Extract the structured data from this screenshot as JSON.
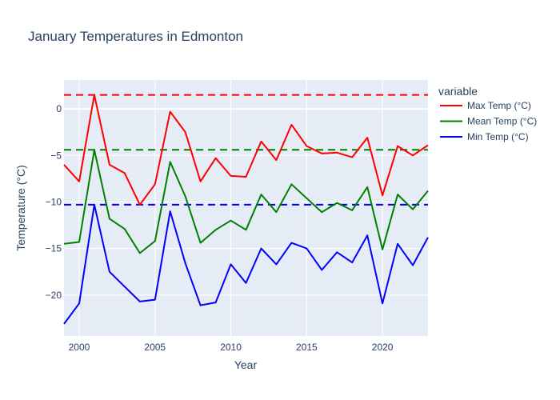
{
  "chart_data": {
    "type": "line",
    "title": "January Temperatures in Edmonton",
    "xlabel": "Year",
    "ylabel": "Temperature (°C)",
    "legend_title": "variable",
    "legend_position": "right",
    "grid": true,
    "xlim": [
      1999,
      2023
    ],
    "ylim": [
      -24.4,
      3.1
    ],
    "xticks": [
      2000,
      2005,
      2010,
      2015,
      2020
    ],
    "yticks": [
      0,
      -5,
      -10,
      -15,
      -20
    ],
    "x": [
      1999,
      2000,
      2001,
      2002,
      2003,
      2004,
      2005,
      2006,
      2007,
      2008,
      2009,
      2010,
      2011,
      2012,
      2013,
      2014,
      2015,
      2016,
      2017,
      2018,
      2019,
      2020,
      2021,
      2022,
      2023
    ],
    "series": [
      {
        "name": "Max Temp (°C)",
        "color": "#ff0000",
        "values": [
          -6.0,
          -7.8,
          1.5,
          -6.0,
          -6.9,
          -10.3,
          -8.1,
          -0.3,
          -2.5,
          -7.8,
          -5.3,
          -7.2,
          -7.3,
          -3.5,
          -5.5,
          -1.7,
          -4.0,
          -4.8,
          -4.7,
          -5.2,
          -3.1,
          -9.3,
          -4.0,
          -5.0,
          -3.9
        ]
      },
      {
        "name": "Mean Temp (°C)",
        "color": "#008000",
        "values": [
          -14.5,
          -14.3,
          -4.4,
          -11.8,
          -12.9,
          -15.5,
          -14.2,
          -5.7,
          -9.4,
          -14.4,
          -13.0,
          -12.0,
          -13.0,
          -9.2,
          -11.1,
          -8.1,
          -9.6,
          -11.1,
          -10.1,
          -10.9,
          -8.4,
          -15.1,
          -9.2,
          -10.8,
          -8.8
        ]
      },
      {
        "name": "Min Temp (°C)",
        "color": "#0000ff",
        "values": [
          -23.1,
          -20.9,
          -10.3,
          -17.5,
          -19.1,
          -20.7,
          -20.5,
          -11.0,
          -16.6,
          -21.1,
          -20.8,
          -16.7,
          -18.7,
          -15.0,
          -16.7,
          -14.4,
          -15.0,
          -17.3,
          -15.4,
          -16.5,
          -13.6,
          -20.9,
          -14.5,
          -16.8,
          -13.8
        ]
      }
    ],
    "reference_lines": [
      {
        "y": 1.5,
        "color": "#ff0000",
        "style": "dashed"
      },
      {
        "y": -4.4,
        "color": "#008000",
        "style": "dashed"
      },
      {
        "y": -10.3,
        "color": "#0000ff",
        "style": "dashed"
      }
    ]
  }
}
